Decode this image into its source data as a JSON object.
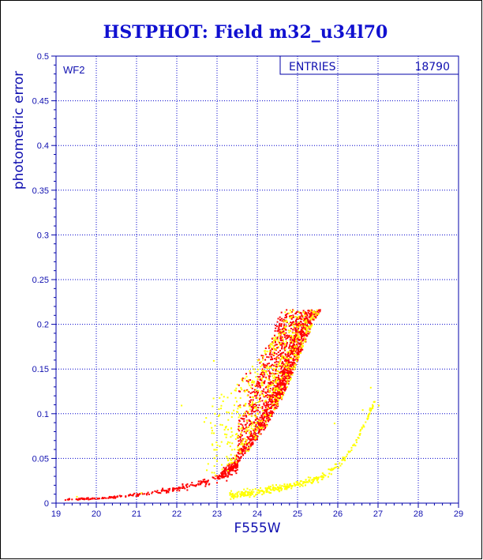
{
  "chart_data": {
    "type": "scatter",
    "title": "HSTPHOT: Field m32_u34l70",
    "xlabel": "F555W",
    "ylabel": "photometric error",
    "panel_label": "WF2",
    "stats": {
      "label": "ENTRIES",
      "value": "18790"
    },
    "xlim": [
      19,
      29
    ],
    "ylim": [
      0,
      0.5
    ],
    "x_ticks": [
      "19",
      "20",
      "21",
      "22",
      "23",
      "24",
      "25",
      "26",
      "27",
      "28",
      "29"
    ],
    "y_ticks": [
      "0",
      "0.05",
      "0.1",
      "0.15",
      "0.2",
      "0.25",
      "0.3",
      "0.35",
      "0.4",
      "0.45",
      "0.5"
    ],
    "grid": true,
    "series": [
      {
        "color": "#ff0000",
        "description_points": [
          [
            19.3,
            0.005
          ],
          [
            20.0,
            0.006
          ],
          [
            20.5,
            0.008
          ],
          [
            21.0,
            0.01
          ],
          [
            21.5,
            0.013
          ],
          [
            22.0,
            0.017
          ],
          [
            22.5,
            0.022
          ],
          [
            23.0,
            0.03
          ],
          [
            23.3,
            0.038
          ],
          [
            23.6,
            0.05
          ],
          [
            23.9,
            0.066
          ],
          [
            24.2,
            0.085
          ],
          [
            24.5,
            0.108
          ],
          [
            24.8,
            0.137
          ],
          [
            25.1,
            0.172
          ],
          [
            25.4,
            0.205
          ],
          [
            25.6,
            0.215
          ]
        ]
      },
      {
        "color": "#ffff00",
        "description_points": [
          [
            23.3,
            0.01
          ],
          [
            23.8,
            0.012
          ],
          [
            24.2,
            0.015
          ],
          [
            24.6,
            0.018
          ],
          [
            25.0,
            0.022
          ],
          [
            25.4,
            0.027
          ],
          [
            25.7,
            0.033
          ],
          [
            25.9,
            0.04
          ],
          [
            26.1,
            0.048
          ],
          [
            26.3,
            0.06
          ],
          [
            26.5,
            0.075
          ],
          [
            26.7,
            0.095
          ],
          [
            26.9,
            0.115
          ]
        ]
      }
    ]
  },
  "colors": {
    "axis": "#0000aa",
    "grid": "#0000cc",
    "title": "#1010d0",
    "red_points": "#ff0000",
    "yellow_points": "#ffff00"
  }
}
